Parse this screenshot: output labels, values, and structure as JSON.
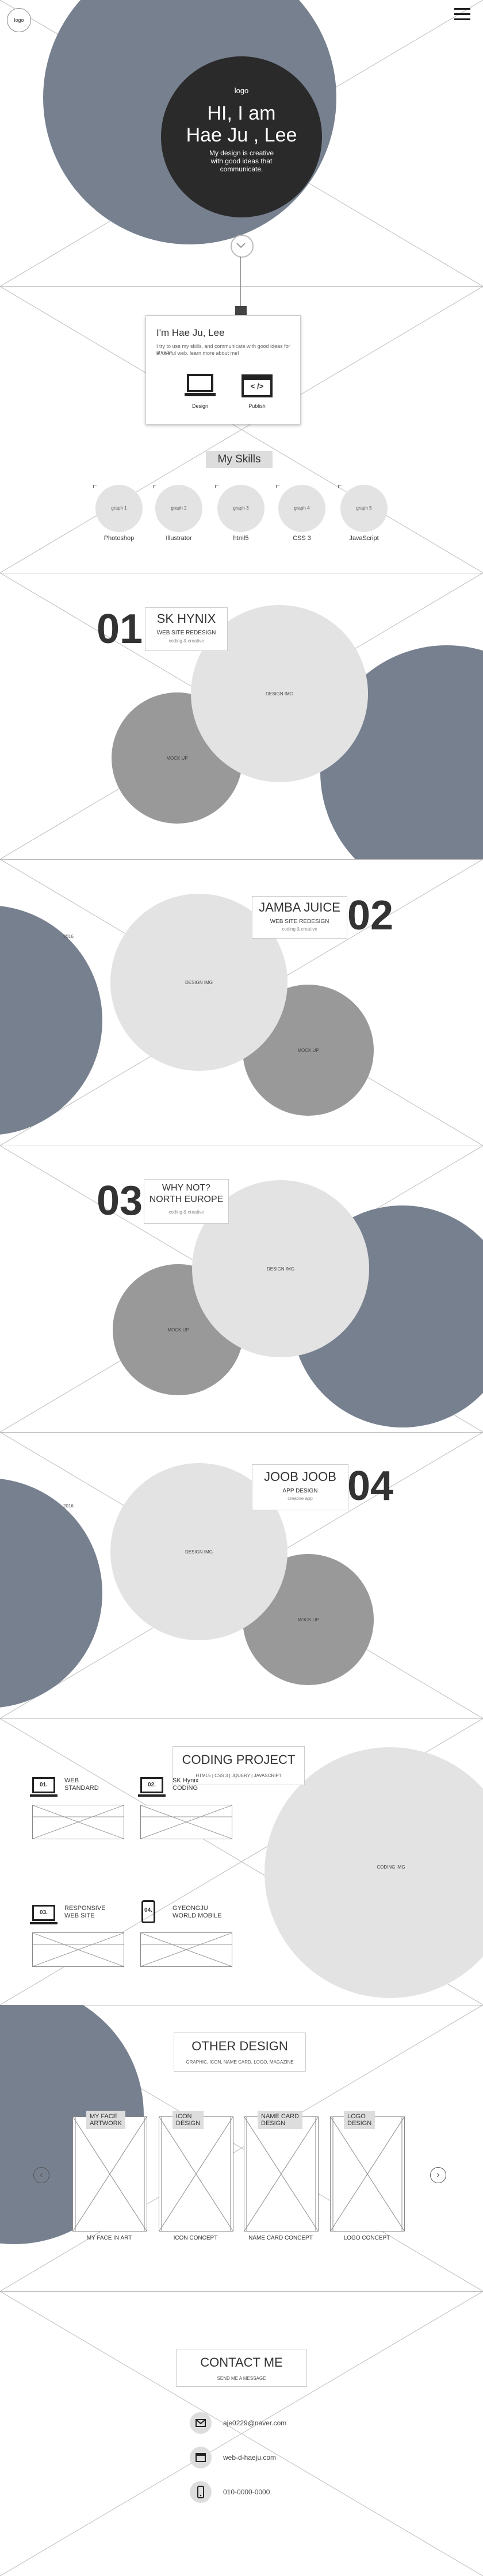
{
  "nav": {
    "corner_logo": "logo",
    "menu_icon": "hamburger-icon"
  },
  "hero": {
    "logo": "logo",
    "greeting": "HI, I am",
    "name": "Hae Ju , Lee",
    "tagline_1": "My design is creative",
    "tagline_2": "with good ideas that",
    "tagline_3": "communicate."
  },
  "about": {
    "title": "I'm Hae Ju, Lee",
    "text_1": "I try to use my skills, and communicate with good ideas for create",
    "text_2": "a, useful web. learn more about me!",
    "design_label": "Design",
    "publish_label": "Publish",
    "publish_glyph": "< />"
  },
  "skills": {
    "title": "My Skills",
    "items": [
      {
        "graph": "graph 1",
        "label": "Photoshop"
      },
      {
        "graph": "graph 2",
        "label": "Illustrator"
      },
      {
        "graph": "graph 3",
        "label": "html5"
      },
      {
        "graph": "graph 4",
        "label": "CSS 3"
      },
      {
        "graph": "graph 5",
        "label": "JavaScript"
      }
    ]
  },
  "projects": [
    {
      "num": "01",
      "title": "SK HYNIX",
      "sub": "WEB SITE REDESIGN",
      "meta": "coding & creative",
      "design": "DESIGN IMG",
      "mock": "MOCK UP"
    },
    {
      "num": "02",
      "title": "JAMBA JUICE",
      "sub": "WEB SITE REDESIGN",
      "meta": "coding & creative",
      "design": "DESIGN IMG",
      "mock": "MOCK UP",
      "side": "2016"
    },
    {
      "num": "03",
      "title_1": "WHY NOT?",
      "title_2": "NORTH EUROPE",
      "meta": "coding & creative",
      "design": "DESIGN IMG",
      "mock": "MOCK UP"
    },
    {
      "num": "04",
      "title": "JOOB JOOB",
      "sub": "APP DESIGN",
      "meta": "creative app",
      "design": "DESIGN IMG",
      "mock": "MOCK UP",
      "side": "2016"
    }
  ],
  "coding": {
    "title": "CODING PROJECT",
    "sub": "HTML5 | CSS 3 | JQUERY | JAVASCRIPT",
    "img": "CODING IMG",
    "items": [
      {
        "num": "01.",
        "label_1": "WEB",
        "label_2": "STANDARD"
      },
      {
        "num": "02.",
        "label_1": "SK Hynix",
        "label_2": "CODING"
      },
      {
        "num": "03.",
        "label_1": "RESPONSIVE",
        "label_2": "WEB SITE"
      },
      {
        "num": "04.",
        "label_1": "GYEONGJU",
        "label_2": "WORLD MOBILE"
      }
    ]
  },
  "other": {
    "title": "OTHER DESIGN",
    "sub": "GRAPHIC, ICON, NAME CARD, LOGO, MAGAZINE",
    "items": [
      {
        "chip_1": "MY FACE",
        "chip_2": "ARTWORK",
        "label": "MY FACE IN ART"
      },
      {
        "chip_1": "ICON",
        "chip_2": "DESIGN",
        "label": "ICON CONCEPT"
      },
      {
        "chip_1": "NAME CARD",
        "chip_2": "DESIGN",
        "label": "NAME CARD CONCEPT"
      },
      {
        "chip_1": "LOGO",
        "chip_2": "DESIGN",
        "label": "LOGO CONCEPT"
      }
    ]
  },
  "contact": {
    "title": "CONTACT ME",
    "sub": "SEND ME A MESSAGE",
    "email": "aje0229@naver.com",
    "web": "web-d-haeju.com",
    "phone": "010-0000-0000"
  }
}
